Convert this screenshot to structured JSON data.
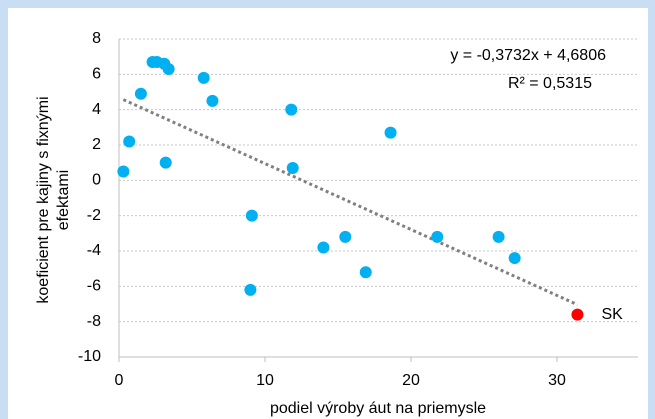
{
  "chart_data": {
    "type": "scatter",
    "x_label": "podiel výroby áut na priemysle",
    "y_label": [
      "koeficient pre kajiny s fixnými",
      "efektami"
    ],
    "series": [
      {
        "color": "#00b0f0",
        "x": [
          0.3,
          0.7,
          1.5,
          2.3,
          2.6,
          3.1,
          3.4,
          3.2,
          5.8,
          6.4,
          9.1,
          9.0,
          11.8,
          11.9,
          14.0,
          15.5,
          16.9,
          18.6,
          21.8,
          26.0,
          27.1
        ],
        "values": [
          0.5,
          2.2,
          4.9,
          6.7,
          6.7,
          6.6,
          6.3,
          1.0,
          5.8,
          4.5,
          -2.0,
          -6.2,
          4.0,
          0.7,
          -3.8,
          -3.2,
          -5.2,
          2.7,
          -3.2,
          -3.2,
          -4.4
        ]
      },
      {
        "name": "SK",
        "color": "#ff0000",
        "x": [
          31.4
        ],
        "values": [
          -7.6
        ]
      }
    ],
    "trendline": {
      "slope": -0.3732,
      "intercept": 4.6806,
      "color": "#808080",
      "equation": "y = -0,3732x + 4,6806",
      "r2": "R² = 0,5315"
    },
    "xlim": [
      0,
      35
    ],
    "xticks": [
      0,
      10,
      20,
      30
    ],
    "ylim": [
      -10,
      8
    ],
    "yticks": [
      -10,
      -8,
      -6,
      -4,
      -2,
      0,
      2,
      4,
      6,
      8
    ],
    "grid": true
  }
}
